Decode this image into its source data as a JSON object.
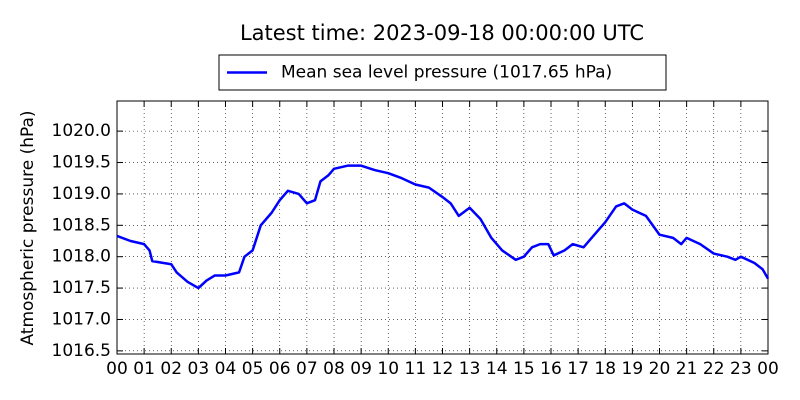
{
  "chart_data": {
    "type": "line",
    "title": "Latest time: 2023-09-18 00:00:00 UTC",
    "y_label": "Atmospheric pressure (hPa)",
    "x": [
      0,
      0.5,
      1,
      1.2,
      1.3,
      2,
      2.2,
      2.6,
      3,
      3.3,
      3.6,
      4,
      4.5,
      4.7,
      5,
      5.3,
      5.7,
      6,
      6.3,
      6.7,
      7,
      7.3,
      7.5,
      7.8,
      8,
      8.5,
      9,
      9.5,
      10,
      10.5,
      11,
      11.5,
      12,
      12.3,
      12.6,
      13,
      13.4,
      13.8,
      14.2,
      14.7,
      15,
      15.3,
      15.6,
      15.9,
      16.1,
      16.5,
      16.8,
      17.2,
      17.5,
      18,
      18.4,
      18.7,
      19,
      19.5,
      20,
      20.5,
      20.8,
      21,
      21.5,
      22,
      22.5,
      22.8,
      23,
      23.5,
      23.8,
      24
    ],
    "series": [
      {
        "name": "Mean sea level pressure (1017.65 hPa)",
        "color": "#0000ff",
        "values": [
          1018.33,
          1018.25,
          1018.2,
          1018.1,
          1017.93,
          1017.88,
          1017.75,
          1017.6,
          1017.5,
          1017.62,
          1017.7,
          1017.7,
          1017.75,
          1018.0,
          1018.1,
          1018.5,
          1018.7,
          1018.9,
          1019.05,
          1019.0,
          1018.85,
          1018.9,
          1019.2,
          1019.3,
          1019.4,
          1019.45,
          1019.45,
          1019.38,
          1019.33,
          1019.25,
          1019.15,
          1019.1,
          1018.95,
          1018.85,
          1018.65,
          1018.78,
          1018.6,
          1018.3,
          1018.1,
          1017.95,
          1018.0,
          1018.15,
          1018.2,
          1018.2,
          1018.02,
          1018.1,
          1018.2,
          1018.15,
          1018.3,
          1018.55,
          1018.8,
          1018.85,
          1018.75,
          1018.65,
          1018.35,
          1018.3,
          1018.2,
          1018.3,
          1018.2,
          1018.05,
          1018.0,
          1017.95,
          1018.0,
          1017.9,
          1017.8,
          1017.65
        ]
      }
    ],
    "xlim": [
      0,
      24
    ],
    "xticks": [
      {
        "value": 0,
        "label": "00"
      },
      {
        "value": 1,
        "label": "01"
      },
      {
        "value": 2,
        "label": "02"
      },
      {
        "value": 3,
        "label": "03"
      },
      {
        "value": 4,
        "label": "04"
      },
      {
        "value": 5,
        "label": "05"
      },
      {
        "value": 6,
        "label": "06"
      },
      {
        "value": 7,
        "label": "07"
      },
      {
        "value": 8,
        "label": "08"
      },
      {
        "value": 9,
        "label": "09"
      },
      10,
      11,
      12,
      13,
      14,
      15,
      16,
      17,
      18,
      19,
      20,
      21,
      22,
      23,
      {
        "value": 24,
        "label": "00"
      }
    ],
    "ylim": [
      1016.45,
      1020.48
    ],
    "yticks": [
      1016.5,
      {
        "value": 1017,
        "label": "1017.0"
      },
      1017.5,
      {
        "value": 1018,
        "label": "1018.0"
      },
      1018.5,
      {
        "value": 1019,
        "label": "1019.0"
      },
      1019.5,
      {
        "value": 1020,
        "label": "1020.0"
      }
    ],
    "grid": true,
    "legend": "top"
  }
}
